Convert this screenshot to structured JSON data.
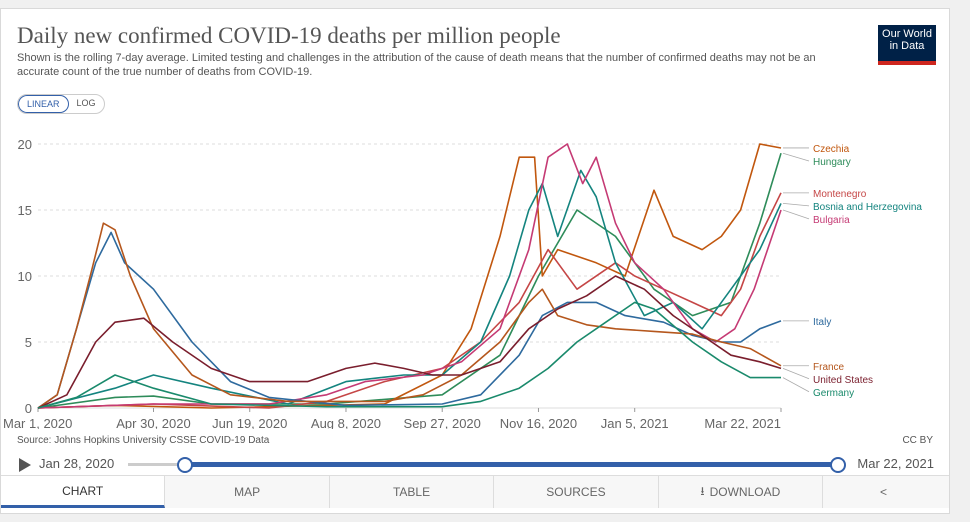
{
  "header": {
    "title": "Daily new confirmed COVID-19 deaths per million people",
    "subtitle": "Shown is the rolling 7-day average. Limited testing and challenges in the attribution of the cause of death means that the number of confirmed deaths may not be an accurate count of the true number of deaths from COVID-19.",
    "logo_line1": "Our World",
    "logo_line2": "in Data"
  },
  "scale_toggle": {
    "linear": "LINEAR",
    "log": "LOG",
    "selected": "LINEAR"
  },
  "footer": {
    "source": "Source: Johns Hopkins University CSSE COVID-19 Data",
    "license": "CC BY"
  },
  "timeline": {
    "start": "Jan 28, 2020",
    "end": "Mar 22, 2021",
    "start_progress": 0.08,
    "end_progress": 1.0
  },
  "tabs": [
    {
      "label": "CHART",
      "active": true
    },
    {
      "label": "MAP"
    },
    {
      "label": "TABLE"
    },
    {
      "label": "SOURCES"
    },
    {
      "label": "DOWNLOAD",
      "icon": "download-icon"
    },
    {
      "label": "",
      "icon": "share-icon"
    }
  ],
  "colors": {
    "accent": "#3360a9",
    "text": "#555555"
  },
  "chart_data": {
    "type": "line",
    "xlabel": "",
    "ylabel": "",
    "ylim": [
      0,
      20
    ],
    "yticks": [
      0,
      5,
      10,
      15,
      20
    ],
    "xticks": [
      "Mar 1, 2020",
      "Apr 30, 2020",
      "Jun 19, 2020",
      "Aug 8, 2020",
      "Sep 27, 2020",
      "Nov 16, 2020",
      "Jan 5, 2021",
      "Mar 22, 2021"
    ],
    "xtick_days": [
      0,
      60,
      110,
      160,
      210,
      260,
      310,
      386
    ],
    "x_start": "Mar 1, 2020",
    "x_end": "Mar 22, 2021",
    "grid": "horizontal dashed",
    "series": [
      {
        "name": "Hungary",
        "color": "#2e8c5a",
        "points": [
          [
            0,
            0
          ],
          [
            40,
            0.8
          ],
          [
            60,
            0.9
          ],
          [
            90,
            0.3
          ],
          [
            150,
            0.3
          ],
          [
            210,
            1
          ],
          [
            240,
            4
          ],
          [
            260,
            10
          ],
          [
            280,
            15
          ],
          [
            300,
            13
          ],
          [
            320,
            9
          ],
          [
            340,
            7
          ],
          [
            360,
            8
          ],
          [
            375,
            14
          ],
          [
            386,
            19.3
          ]
        ]
      },
      {
        "name": "Czechia",
        "color": "#c1570e",
        "points": [
          [
            0,
            0
          ],
          [
            40,
            0.2
          ],
          [
            90,
            0
          ],
          [
            180,
            0.3
          ],
          [
            210,
            2.5
          ],
          [
            225,
            6
          ],
          [
            240,
            13
          ],
          [
            250,
            19
          ],
          [
            258,
            19
          ],
          [
            262,
            10
          ],
          [
            270,
            12
          ],
          [
            290,
            11
          ],
          [
            305,
            10
          ],
          [
            320,
            16.5
          ],
          [
            330,
            13
          ],
          [
            345,
            12
          ],
          [
            355,
            13
          ],
          [
            365,
            15
          ],
          [
            375,
            20
          ],
          [
            386,
            19.7
          ]
        ]
      },
      {
        "name": "Montenegro",
        "color": "#c54646",
        "points": [
          [
            0,
            0
          ],
          [
            60,
            0.3
          ],
          [
            120,
            0
          ],
          [
            150,
            0.5
          ],
          [
            180,
            2
          ],
          [
            210,
            3
          ],
          [
            230,
            5
          ],
          [
            250,
            8
          ],
          [
            265,
            12
          ],
          [
            280,
            9
          ],
          [
            300,
            11
          ],
          [
            310,
            10
          ],
          [
            325,
            9
          ],
          [
            340,
            8
          ],
          [
            355,
            7
          ],
          [
            365,
            9
          ],
          [
            375,
            13
          ],
          [
            386,
            16.3
          ]
        ]
      },
      {
        "name": "Bosnia and Herzegovina",
        "color": "#14847f",
        "points": [
          [
            0,
            0
          ],
          [
            40,
            1.5
          ],
          [
            60,
            2.5
          ],
          [
            90,
            1.5
          ],
          [
            130,
            0.3
          ],
          [
            160,
            2
          ],
          [
            190,
            2.5
          ],
          [
            210,
            2.5
          ],
          [
            230,
            5
          ],
          [
            245,
            10
          ],
          [
            255,
            15
          ],
          [
            262,
            17
          ],
          [
            270,
            13
          ],
          [
            282,
            18
          ],
          [
            290,
            16
          ],
          [
            300,
            11
          ],
          [
            315,
            7
          ],
          [
            330,
            8
          ],
          [
            345,
            6
          ],
          [
            360,
            9
          ],
          [
            375,
            12
          ],
          [
            386,
            15.5
          ]
        ]
      },
      {
        "name": "Bulgaria",
        "color": "#c53a74",
        "points": [
          [
            0,
            0
          ],
          [
            60,
            0.3
          ],
          [
            120,
            0.3
          ],
          [
            150,
            1
          ],
          [
            170,
            2
          ],
          [
            200,
            2.5
          ],
          [
            220,
            3.5
          ],
          [
            240,
            6
          ],
          [
            255,
            12
          ],
          [
            265,
            19
          ],
          [
            275,
            20
          ],
          [
            283,
            17
          ],
          [
            290,
            19
          ],
          [
            300,
            14
          ],
          [
            310,
            11
          ],
          [
            325,
            9
          ],
          [
            340,
            6
          ],
          [
            352,
            5
          ],
          [
            362,
            6
          ],
          [
            372,
            9
          ],
          [
            386,
            15
          ]
        ]
      },
      {
        "name": "Italy",
        "color": "#2e6a9e",
        "points": [
          [
            0,
            0
          ],
          [
            10,
            1
          ],
          [
            22,
            7
          ],
          [
            30,
            11
          ],
          [
            38,
            13.3
          ],
          [
            45,
            11
          ],
          [
            60,
            9
          ],
          [
            80,
            5
          ],
          [
            100,
            2
          ],
          [
            120,
            0.8
          ],
          [
            160,
            0.2
          ],
          [
            210,
            0.3
          ],
          [
            230,
            1
          ],
          [
            250,
            4
          ],
          [
            262,
            7
          ],
          [
            275,
            8
          ],
          [
            290,
            8
          ],
          [
            305,
            7
          ],
          [
            325,
            6.5
          ],
          [
            340,
            5.5
          ],
          [
            355,
            5
          ],
          [
            365,
            5
          ],
          [
            375,
            6
          ],
          [
            386,
            6.6
          ]
        ]
      },
      {
        "name": "France",
        "color": "#b5571d",
        "points": [
          [
            0,
            0
          ],
          [
            10,
            1
          ],
          [
            20,
            6
          ],
          [
            28,
            10.5
          ],
          [
            34,
            14
          ],
          [
            40,
            13.5
          ],
          [
            48,
            10
          ],
          [
            60,
            6
          ],
          [
            80,
            2.5
          ],
          [
            100,
            1
          ],
          [
            130,
            0.5
          ],
          [
            180,
            0.5
          ],
          [
            200,
            1
          ],
          [
            220,
            2.5
          ],
          [
            240,
            5
          ],
          [
            255,
            8
          ],
          [
            262,
            9
          ],
          [
            270,
            7
          ],
          [
            285,
            6.3
          ],
          [
            300,
            6
          ],
          [
            320,
            5.8
          ],
          [
            340,
            5.6
          ],
          [
            355,
            5
          ],
          [
            370,
            4.5
          ],
          [
            386,
            3.2
          ]
        ]
      },
      {
        "name": "United States",
        "color": "#7a1e2d",
        "points": [
          [
            0,
            0
          ],
          [
            15,
            1
          ],
          [
            30,
            5
          ],
          [
            40,
            6.5
          ],
          [
            55,
            6.8
          ],
          [
            70,
            5
          ],
          [
            90,
            3
          ],
          [
            110,
            2
          ],
          [
            140,
            2
          ],
          [
            150,
            2.5
          ],
          [
            160,
            3
          ],
          [
            175,
            3.4
          ],
          [
            190,
            3
          ],
          [
            205,
            2.5
          ],
          [
            220,
            2.5
          ],
          [
            240,
            3.5
          ],
          [
            255,
            6
          ],
          [
            270,
            7.5
          ],
          [
            285,
            8.5
          ],
          [
            300,
            10
          ],
          [
            315,
            9
          ],
          [
            330,
            7
          ],
          [
            345,
            5.5
          ],
          [
            360,
            4
          ],
          [
            375,
            3.5
          ],
          [
            386,
            3
          ]
        ]
      },
      {
        "name": "Germany",
        "color": "#1a8a6c",
        "points": [
          [
            0,
            0
          ],
          [
            20,
            0.8
          ],
          [
            40,
            2.5
          ],
          [
            60,
            1.5
          ],
          [
            90,
            0.3
          ],
          [
            150,
            0.1
          ],
          [
            210,
            0.1
          ],
          [
            230,
            0.5
          ],
          [
            250,
            1.5
          ],
          [
            265,
            3
          ],
          [
            280,
            5
          ],
          [
            295,
            6.5
          ],
          [
            310,
            8
          ],
          [
            320,
            7.5
          ],
          [
            340,
            5
          ],
          [
            355,
            3.5
          ],
          [
            370,
            2.3
          ],
          [
            386,
            2.3
          ]
        ]
      }
    ]
  }
}
